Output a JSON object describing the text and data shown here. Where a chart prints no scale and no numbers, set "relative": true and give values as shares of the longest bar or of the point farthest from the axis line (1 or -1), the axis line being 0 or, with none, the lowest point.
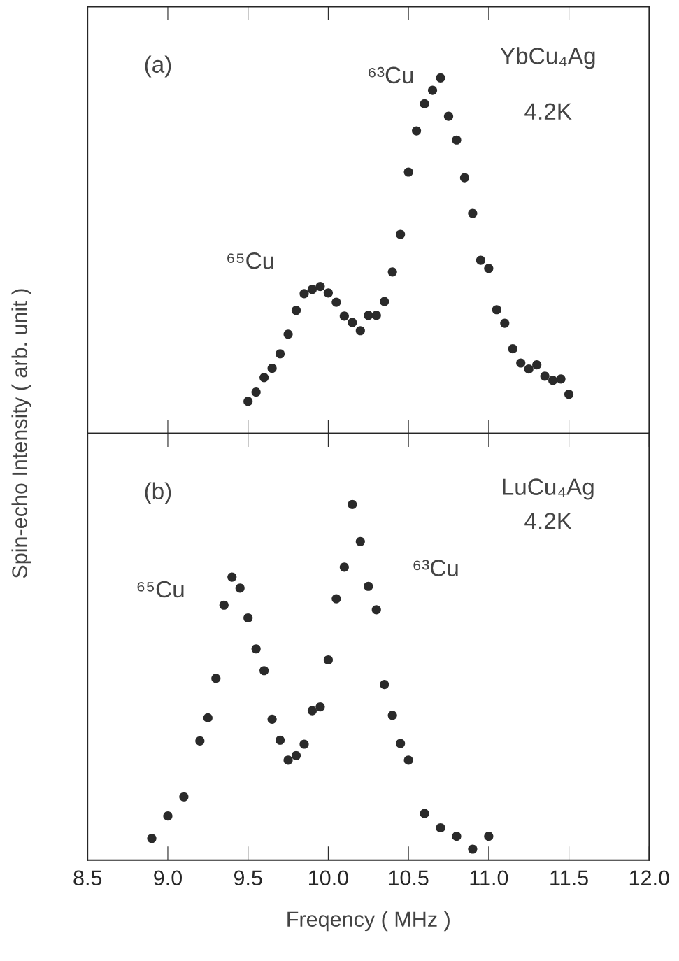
{
  "chart_data": [
    {
      "type": "scatter",
      "relative": true,
      "marker": "circle",
      "grid": false,
      "tick_labels": false,
      "xlim": [
        8.5,
        12.0
      ],
      "xticks": [
        {
          "value": 9.0,
          "label": null
        },
        {
          "value": 9.5,
          "label": null
        },
        {
          "value": 10.0,
          "label": null
        },
        {
          "value": 10.5,
          "label": null
        },
        {
          "value": 11.0,
          "label": null
        },
        {
          "value": 11.5,
          "label": null
        }
      ],
      "annotations": [
        "(a)",
        "YbCu₄Ag",
        "4.2K",
        "⁶⁵Cu",
        "⁶³Cu"
      ],
      "series": [
        {
          "color": "#2a2a2a",
          "x": [
            9.5,
            9.55,
            9.6,
            9.65,
            9.7,
            9.75,
            9.8,
            9.85,
            9.9,
            9.95,
            10.0,
            10.05,
            10.1,
            10.15,
            10.2,
            10.25,
            10.3,
            10.35,
            10.4,
            10.45,
            10.5,
            10.55,
            10.6,
            10.65,
            10.7,
            10.75,
            10.8,
            10.85,
            10.9,
            10.95,
            11.0,
            11.05,
            11.1,
            11.15,
            11.2,
            11.25,
            11.3,
            11.35,
            11.4,
            11.45,
            11.5
          ],
          "values": [
            0.09,
            0.116,
            0.157,
            0.183,
            0.224,
            0.279,
            0.346,
            0.393,
            0.405,
            0.413,
            0.395,
            0.369,
            0.33,
            0.312,
            0.289,
            0.332,
            0.332,
            0.371,
            0.454,
            0.56,
            0.735,
            0.851,
            0.927,
            0.965,
            1,
            0.892,
            0.825,
            0.719,
            0.619,
            0.487,
            0.464,
            0.348,
            0.31,
            0.238,
            0.198,
            0.181,
            0.193,
            0.161,
            0.149,
            0.153,
            0.11
          ]
        }
      ]
    },
    {
      "type": "scatter",
      "relative": true,
      "marker": "circle",
      "grid": false,
      "tick_labels": "x",
      "xlabel": "Freqency ( MHz )",
      "ylabel": "Spin-echo Intensity ( arb. unit )",
      "xlim": [
        8.5,
        12.0
      ],
      "xticks": [
        {
          "value": 8.5,
          "label": "8.5"
        },
        {
          "value": 9.0,
          "label": "9.0"
        },
        {
          "value": 9.5,
          "label": "9.5"
        },
        {
          "value": 10.0,
          "label": "10.0"
        },
        {
          "value": 10.5,
          "label": "10.5"
        },
        {
          "value": 11.0,
          "label": "11.0"
        },
        {
          "value": 11.5,
          "label": "11.5"
        },
        {
          "value": 12.0,
          "label": "12.0"
        }
      ],
      "annotations": [
        "(b)",
        "LuCu₄Ag",
        "4.2K",
        "⁶⁵Cu",
        "⁶³Cu"
      ],
      "series": [
        {
          "color": "#2a2a2a",
          "x": [
            8.9,
            9.0,
            9.1,
            9.2,
            9.25,
            9.3,
            9.35,
            9.4,
            9.45,
            9.5,
            9.55,
            9.6,
            9.65,
            9.7,
            9.75,
            9.8,
            9.85,
            9.9,
            9.95,
            10.0,
            10.05,
            10.1,
            10.15,
            10.2,
            10.25,
            10.3,
            10.35,
            10.4,
            10.45,
            10.5,
            10.6,
            10.7,
            10.8,
            10.9,
            11.0
          ],
          "values": [
            0.061,
            0.124,
            0.178,
            0.335,
            0.4,
            0.511,
            0.717,
            0.796,
            0.765,
            0.681,
            0.594,
            0.533,
            0.396,
            0.337,
            0.281,
            0.294,
            0.326,
            0.42,
            0.431,
            0.563,
            0.735,
            0.824,
            1,
            0.896,
            0.77,
            0.704,
            0.494,
            0.407,
            0.328,
            0.281,
            0.131,
            0.091,
            0.067,
            0.031,
            0.067
          ]
        }
      ]
    }
  ]
}
